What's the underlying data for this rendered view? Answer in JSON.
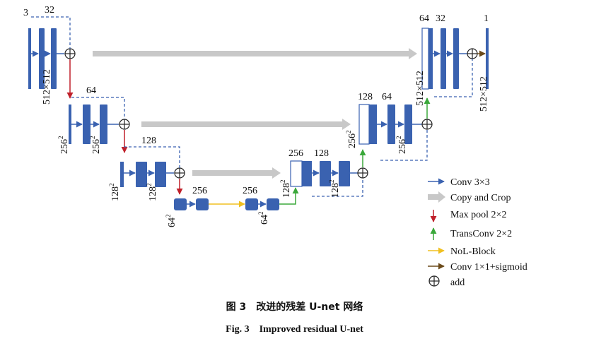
{
  "colors": {
    "block": "#3a62b0",
    "block_edge": "#2b4f95",
    "conv_arrow": "#3a62b0",
    "copy_crop": "#c8c8c8",
    "maxpool": "#c0202a",
    "transconv": "#3aa83a",
    "nol": "#f0c020",
    "conv1x1": "#6b4a1a",
    "dashed": "#3a62b0"
  },
  "labels": {
    "enc1_in": "3",
    "enc1_ch": "32",
    "enc1_size": "512×512",
    "enc2_ch": "64",
    "enc2_size_a": "256",
    "enc2_size_b": "256",
    "enc3_ch": "128",
    "enc3_size_a": "128",
    "enc3_size_b": "128",
    "bot_ch_a": "256",
    "bot_ch_b": "256",
    "bot_size_a": "64",
    "bot_size_b": "64",
    "dec3_ch_a": "256",
    "dec3_ch_b": "128",
    "dec3_size_a": "128",
    "dec3_size_b": "128",
    "dec2_ch_a": "128",
    "dec2_ch_b": "64",
    "dec2_size_a": "256",
    "dec2_size_b": "256",
    "dec1_ch_a": "64",
    "dec1_ch_b": "32",
    "dec1_out": "1",
    "dec1_size_a": "512×512",
    "dec1_size_b": "512×512",
    "sup": "2"
  },
  "legend": [
    {
      "icon": "conv-arrow-icon",
      "text": "Conv 3×3"
    },
    {
      "icon": "copy-crop-arrow-icon",
      "text": "Copy and Crop"
    },
    {
      "icon": "maxpool-arrow-icon",
      "text": "Max pool 2×2"
    },
    {
      "icon": "transconv-arrow-icon",
      "text": "TransConv 2×2"
    },
    {
      "icon": "nol-block-arrow-icon",
      "text": "NoL-Block"
    },
    {
      "icon": "conv1x1-arrow-icon",
      "text": "Conv 1×1+sigmoid"
    },
    {
      "icon": "add-icon",
      "text": "add"
    }
  ],
  "caption": {
    "cn": "图 3　改进的残差 U-net 网络",
    "en": "Fig. 3　Improved residual U-net"
  }
}
